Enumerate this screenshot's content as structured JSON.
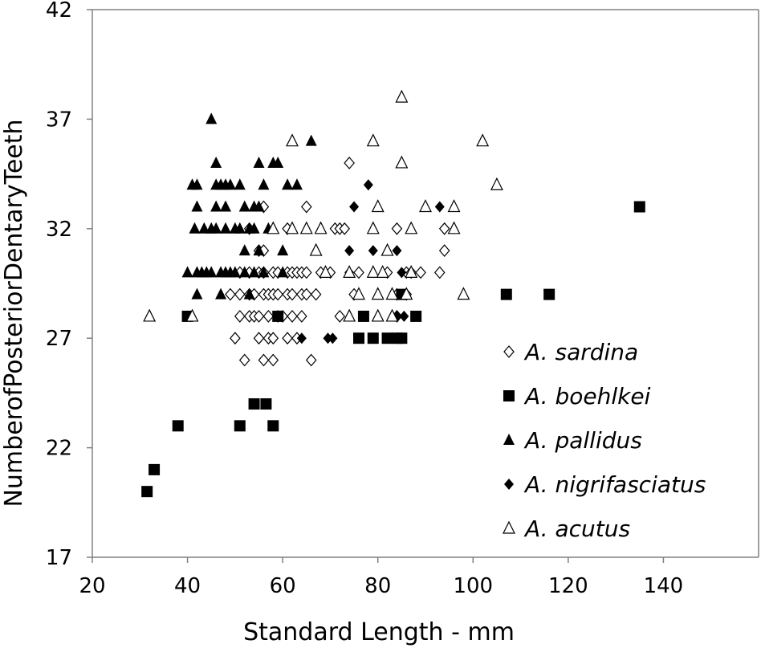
{
  "chart_data": {
    "type": "scatter",
    "title": "",
    "xlabel": "Standard Length - mm",
    "ylabel": "NumberofPosteriorDentaryTeeth",
    "xlim": [
      20,
      160
    ],
    "ylim": [
      17,
      42
    ],
    "xticks": [
      20,
      40,
      60,
      80,
      100,
      120,
      140
    ],
    "yticks": [
      17,
      22,
      27,
      32,
      37,
      42
    ],
    "grid": false,
    "legend_position": "bottom-right",
    "series": [
      {
        "name": "A. sardina",
        "marker": "diamond-open",
        "points": [
          [
            50,
            27
          ],
          [
            52,
            26
          ],
          [
            56,
            26
          ],
          [
            58,
            26
          ],
          [
            66,
            26
          ],
          [
            55,
            27
          ],
          [
            57,
            27
          ],
          [
            58,
            27
          ],
          [
            61,
            27
          ],
          [
            63,
            27
          ],
          [
            51,
            28
          ],
          [
            53,
            28
          ],
          [
            54,
            28
          ],
          [
            55,
            28
          ],
          [
            57,
            28
          ],
          [
            59,
            28
          ],
          [
            60,
            28
          ],
          [
            62,
            28
          ],
          [
            64,
            28
          ],
          [
            72,
            28
          ],
          [
            84,
            28
          ],
          [
            49,
            29
          ],
          [
            51,
            29
          ],
          [
            53,
            29
          ],
          [
            54,
            29
          ],
          [
            56,
            29
          ],
          [
            57,
            29
          ],
          [
            58,
            29
          ],
          [
            59,
            29
          ],
          [
            61,
            29
          ],
          [
            62,
            29
          ],
          [
            64,
            29
          ],
          [
            65,
            29
          ],
          [
            67,
            29
          ],
          [
            75,
            29
          ],
          [
            84,
            29
          ],
          [
            86,
            29
          ],
          [
            51,
            30
          ],
          [
            53,
            30
          ],
          [
            55,
            30
          ],
          [
            56,
            30
          ],
          [
            58,
            30
          ],
          [
            59,
            30
          ],
          [
            61,
            30
          ],
          [
            62,
            30
          ],
          [
            63,
            30
          ],
          [
            64,
            30
          ],
          [
            65,
            30
          ],
          [
            68,
            30
          ],
          [
            70,
            30
          ],
          [
            76,
            30
          ],
          [
            82,
            30
          ],
          [
            86,
            30
          ],
          [
            87,
            30
          ],
          [
            89,
            30
          ],
          [
            93,
            30
          ],
          [
            55,
            31
          ],
          [
            56,
            31
          ],
          [
            94,
            31
          ],
          [
            53,
            32
          ],
          [
            61,
            32
          ],
          [
            71,
            32
          ],
          [
            72,
            32
          ],
          [
            73,
            32
          ],
          [
            84,
            32
          ],
          [
            94,
            32
          ],
          [
            56,
            33
          ],
          [
            65,
            33
          ],
          [
            74,
            35
          ]
        ]
      },
      {
        "name": "A. boehlkei",
        "marker": "square-filled",
        "points": [
          [
            31.5,
            20
          ],
          [
            33,
            21
          ],
          [
            38,
            23
          ],
          [
            51,
            23
          ],
          [
            58,
            23
          ],
          [
            54,
            24
          ],
          [
            56.5,
            24
          ],
          [
            76,
            27
          ],
          [
            79,
            27
          ],
          [
            82,
            27
          ],
          [
            84,
            27
          ],
          [
            85,
            27
          ],
          [
            40,
            28
          ],
          [
            59,
            28
          ],
          [
            77,
            28
          ],
          [
            88,
            28
          ],
          [
            85,
            29
          ],
          [
            107,
            29
          ],
          [
            116,
            29
          ],
          [
            135,
            33
          ]
        ]
      },
      {
        "name": "A. pallidus",
        "marker": "triangle-filled",
        "points": [
          [
            42,
            29
          ],
          [
            47,
            29
          ],
          [
            53,
            29
          ],
          [
            40,
            30
          ],
          [
            42,
            30
          ],
          [
            43,
            30
          ],
          [
            44,
            30
          ],
          [
            45,
            30
          ],
          [
            47,
            30
          ],
          [
            48,
            30
          ],
          [
            49,
            30
          ],
          [
            50,
            30
          ],
          [
            52,
            30
          ],
          [
            54,
            30
          ],
          [
            56,
            30
          ],
          [
            60,
            30
          ],
          [
            52,
            31
          ],
          [
            55,
            31
          ],
          [
            60,
            31
          ],
          [
            41.5,
            32
          ],
          [
            43.5,
            32
          ],
          [
            45,
            32
          ],
          [
            46,
            32
          ],
          [
            48,
            32
          ],
          [
            50,
            32
          ],
          [
            51,
            32
          ],
          [
            53,
            32
          ],
          [
            54,
            32
          ],
          [
            57,
            32
          ],
          [
            58,
            32
          ],
          [
            42,
            33
          ],
          [
            46,
            33
          ],
          [
            48,
            33
          ],
          [
            52,
            33
          ],
          [
            54,
            33
          ],
          [
            55,
            33
          ],
          [
            41,
            34
          ],
          [
            42,
            34
          ],
          [
            46,
            34
          ],
          [
            47,
            34
          ],
          [
            48,
            34
          ],
          [
            49,
            34
          ],
          [
            51,
            34
          ],
          [
            56,
            34
          ],
          [
            61,
            34
          ],
          [
            63,
            34
          ],
          [
            46,
            35
          ],
          [
            55,
            35
          ],
          [
            58,
            35
          ],
          [
            59,
            35
          ],
          [
            66,
            36
          ],
          [
            45,
            37
          ]
        ]
      },
      {
        "name": "A. nigrifasciatus",
        "marker": "diamond-filled",
        "points": [
          [
            64,
            27
          ],
          [
            69.5,
            27
          ],
          [
            70.5,
            27
          ],
          [
            84,
            28
          ],
          [
            85.5,
            28
          ],
          [
            74,
            30
          ],
          [
            85,
            30
          ],
          [
            74,
            31
          ],
          [
            79,
            31
          ],
          [
            84,
            31
          ],
          [
            75,
            33
          ],
          [
            93,
            33
          ],
          [
            78,
            34
          ]
        ]
      },
      {
        "name": "A. acutus",
        "marker": "triangle-open",
        "points": [
          [
            32,
            28
          ],
          [
            41,
            28
          ],
          [
            74,
            28
          ],
          [
            80,
            28
          ],
          [
            83,
            28
          ],
          [
            76,
            29
          ],
          [
            80,
            29
          ],
          [
            83,
            29
          ],
          [
            86,
            29
          ],
          [
            98,
            29
          ],
          [
            69,
            30
          ],
          [
            74,
            30
          ],
          [
            79,
            30
          ],
          [
            81,
            30
          ],
          [
            87,
            30
          ],
          [
            67,
            31
          ],
          [
            82,
            31
          ],
          [
            58,
            32
          ],
          [
            62,
            32
          ],
          [
            65,
            32
          ],
          [
            68,
            32
          ],
          [
            79,
            32
          ],
          [
            87,
            32
          ],
          [
            96,
            32
          ],
          [
            80,
            33
          ],
          [
            90,
            33
          ],
          [
            96,
            33
          ],
          [
            105,
            34
          ],
          [
            85,
            35
          ],
          [
            62,
            36
          ],
          [
            79,
            36
          ],
          [
            102,
            36
          ],
          [
            85,
            38
          ]
        ]
      }
    ]
  }
}
